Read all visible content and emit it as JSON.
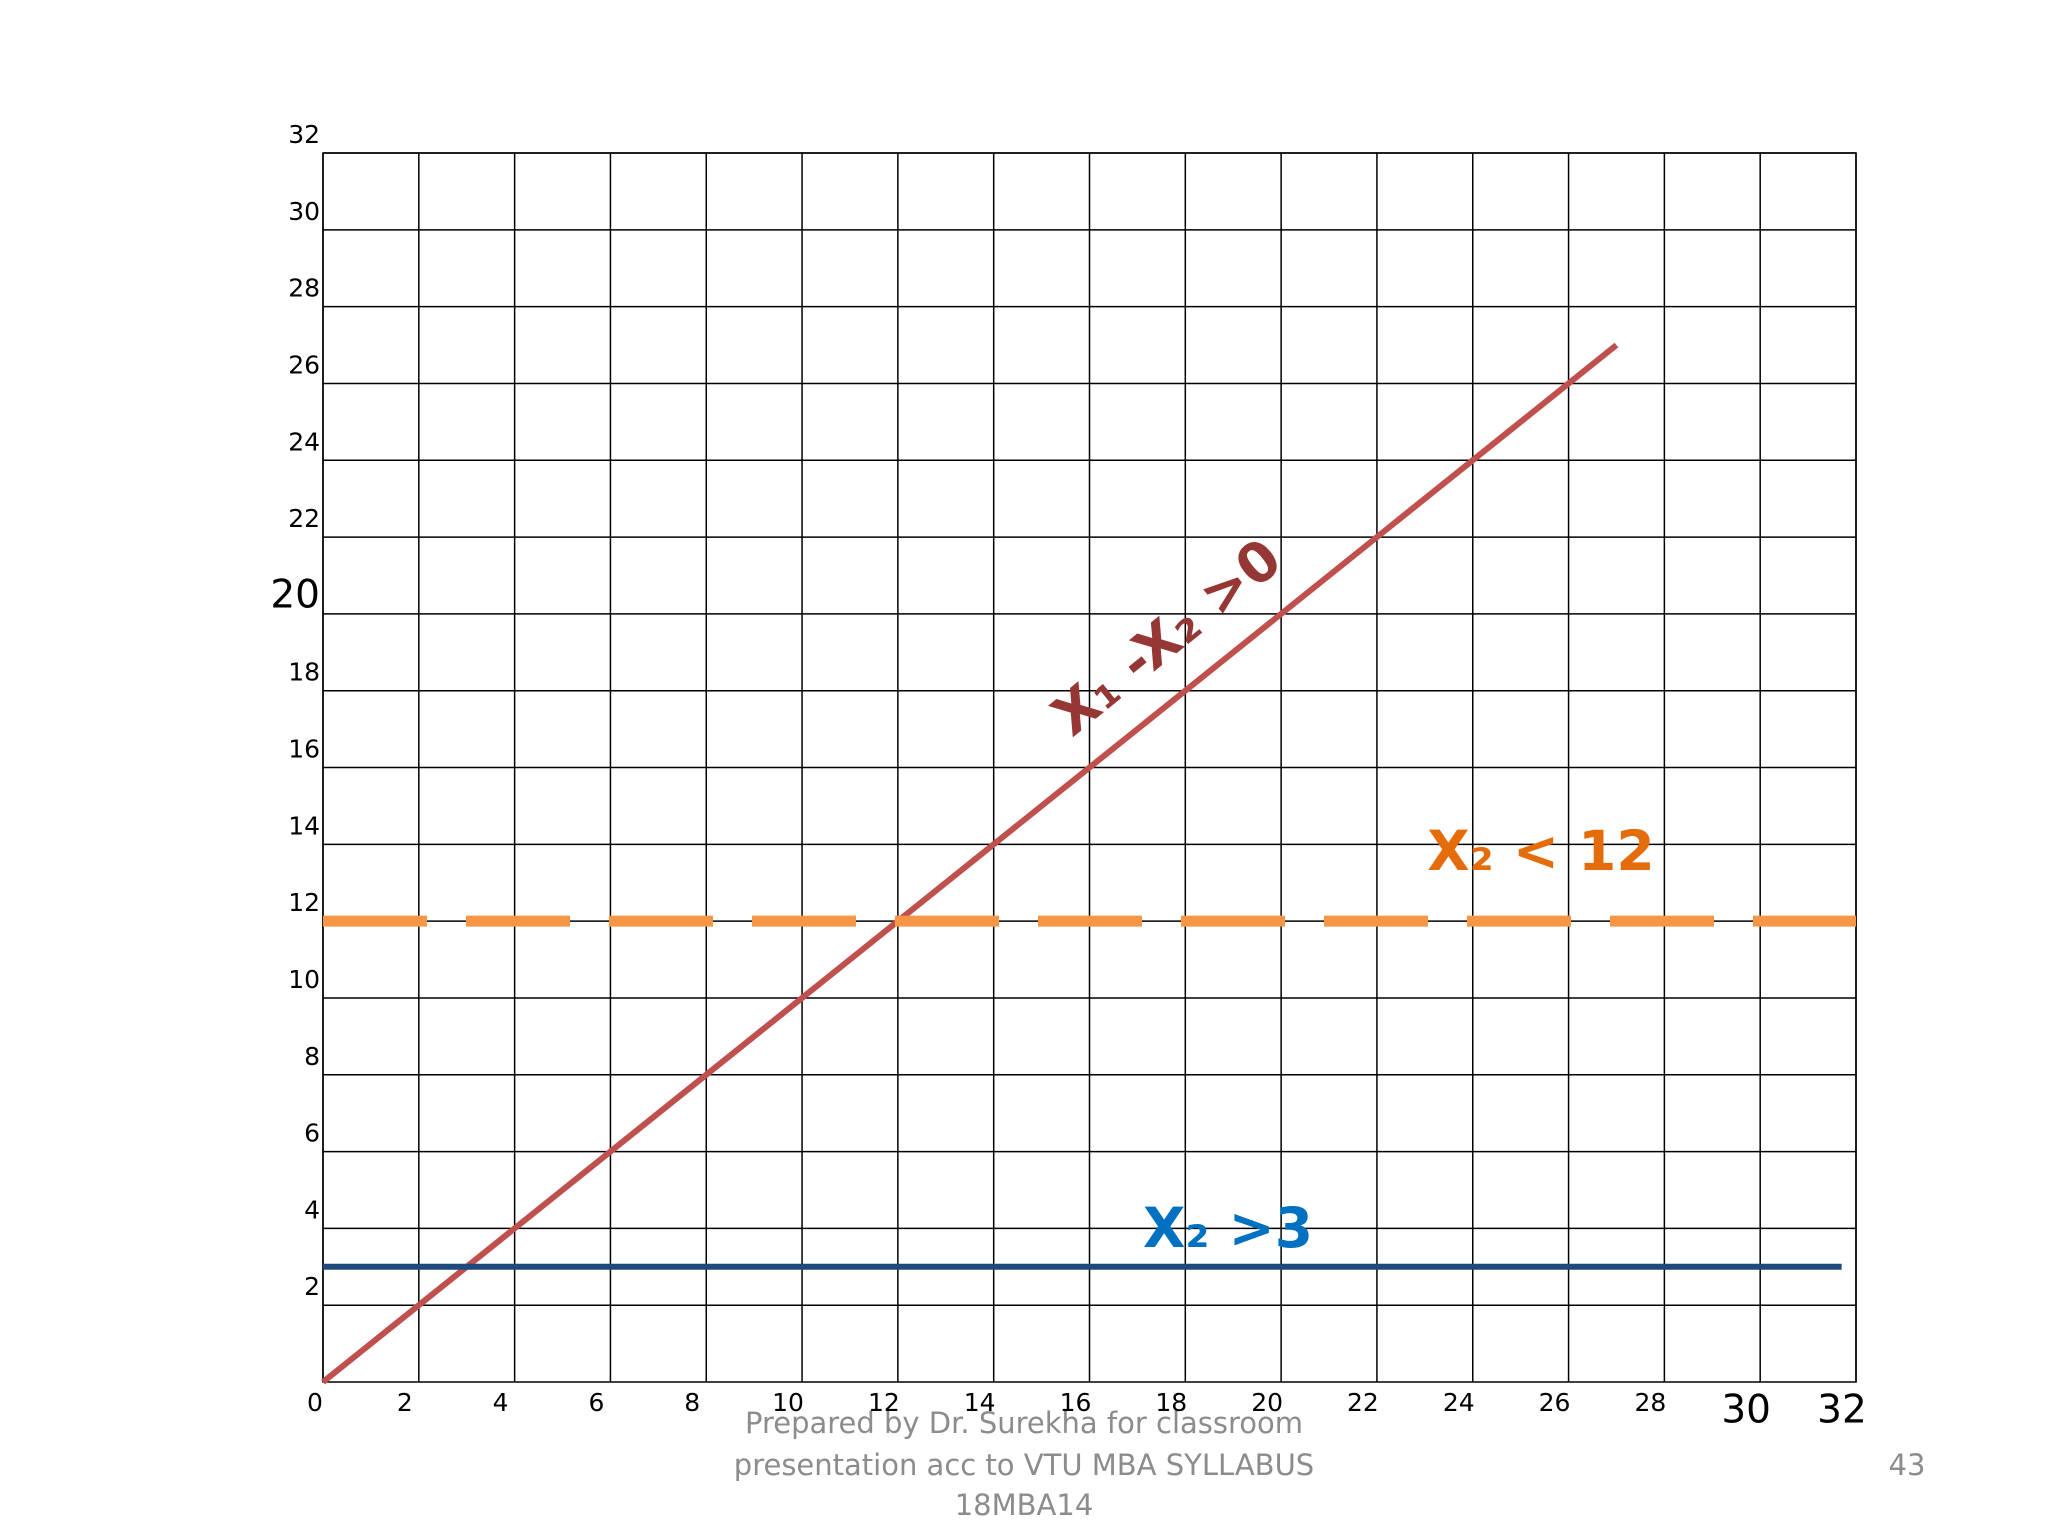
{
  "chart_data": {
    "type": "line",
    "series": [
      {
        "name": "X₁ -X₂ >0",
        "color": "#c0504d",
        "label_color": "#953734",
        "x": [
          0,
          27
        ],
        "values": [
          0,
          27
        ]
      },
      {
        "name": "X₂ < 12",
        "color": "#f79646",
        "label_color": "#e46c0a",
        "dashed": true,
        "x": [
          0,
          32
        ],
        "values": [
          12,
          12
        ]
      },
      {
        "name": "X₂ >3",
        "color": "#1f497d",
        "label_color": "#0070c0",
        "x": [
          0,
          31.7
        ],
        "values": [
          3,
          3
        ]
      }
    ],
    "xlim": [
      0,
      32
    ],
    "ylim": [
      0,
      32
    ],
    "xticks": [
      0,
      2,
      4,
      6,
      8,
      10,
      12,
      14,
      16,
      18,
      20,
      22,
      24,
      26,
      28,
      30,
      32
    ],
    "yticks": [
      2,
      4,
      6,
      8,
      10,
      12,
      14,
      16,
      18,
      20,
      22,
      24,
      26,
      28,
      30,
      32
    ],
    "grid": true
  },
  "footer": {
    "lines": [
      "Prepared by Dr. Surekha for classroom",
      "presentation acc to VTU MBA SYLLABUS",
      "18MBA14"
    ],
    "page_number": "43"
  }
}
